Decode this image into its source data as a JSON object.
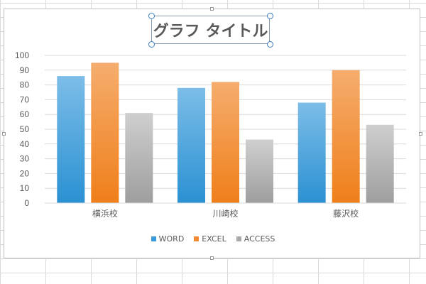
{
  "chart_data": {
    "type": "bar",
    "title": "グラフ タイトル",
    "categories": [
      "横浜校",
      "川崎校",
      "藤沢校"
    ],
    "series": [
      {
        "name": "WORD",
        "values": [
          86,
          78,
          68
        ],
        "color": "#3a9ad9"
      },
      {
        "name": "EXCEL",
        "values": [
          95,
          82,
          90
        ],
        "color": "#f28a30"
      },
      {
        "name": "ACCESS",
        "values": [
          61,
          43,
          53
        ],
        "color": "#a8a8a8"
      }
    ],
    "ylim": [
      0,
      100
    ],
    "yticks": [
      0,
      10,
      20,
      30,
      40,
      50,
      60,
      70,
      80,
      90,
      100
    ],
    "grid": true,
    "legend_position": "bottom"
  }
}
